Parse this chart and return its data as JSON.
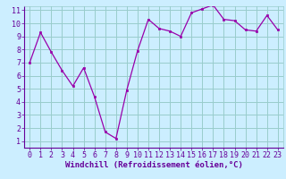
{
  "x": [
    0,
    1,
    2,
    3,
    4,
    5,
    6,
    7,
    8,
    9,
    10,
    11,
    12,
    13,
    14,
    15,
    16,
    17,
    18,
    19,
    20,
    21,
    22,
    23
  ],
  "y": [
    7.0,
    9.3,
    7.8,
    6.4,
    5.2,
    6.6,
    4.4,
    1.7,
    1.2,
    4.9,
    7.9,
    10.3,
    9.6,
    9.4,
    9.0,
    10.8,
    11.1,
    11.4,
    10.3,
    10.2,
    9.5,
    9.4,
    10.6,
    9.5
  ],
  "xlabel": "Windchill (Refroidissement éolien,°C)",
  "ylim_min": 1,
  "ylim_max": 11,
  "xlim_min": 0,
  "xlim_max": 23,
  "line_color": "#9900aa",
  "marker_color": "#9900aa",
  "bg_color": "#cceeff",
  "grid_color": "#99cccc",
  "xlabel_color": "#660099",
  "xlabel_fontsize": 6.5,
  "tick_fontsize": 6.0,
  "yticks": [
    1,
    2,
    3,
    4,
    5,
    6,
    7,
    8,
    9,
    10,
    11
  ],
  "xticks": [
    0,
    1,
    2,
    3,
    4,
    5,
    6,
    7,
    8,
    9,
    10,
    11,
    12,
    13,
    14,
    15,
    16,
    17,
    18,
    19,
    20,
    21,
    22,
    23
  ]
}
